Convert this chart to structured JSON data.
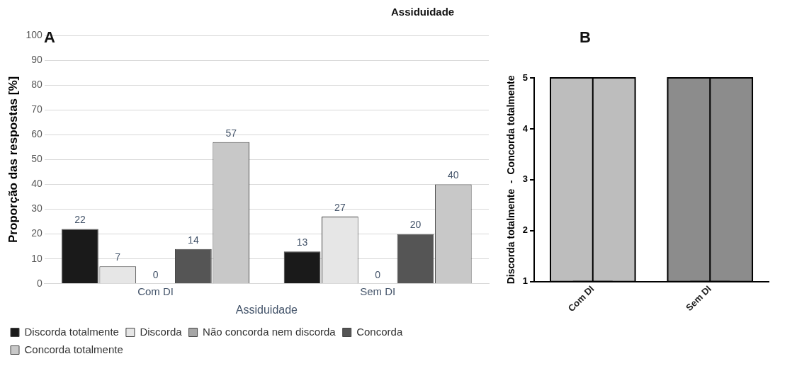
{
  "chart_data": [
    {
      "type": "bar",
      "title": "Assiduidade",
      "ylabel": "Proporção das respostas [%]",
      "xlabel": "Assiduidade",
      "annotations": [
        "A"
      ],
      "categories": [
        "Com DI",
        "Sem DI"
      ],
      "series": [
        {
          "name": "Discorda totalmente",
          "color": "#1a1a1a",
          "values": [
            22,
            13
          ]
        },
        {
          "name": "Discorda",
          "color": "#e6e6e6",
          "values": [
            7,
            27
          ]
        },
        {
          "name": "Não concorda nem discorda",
          "color": "#a6a6a6",
          "values": [
            0,
            0
          ]
        },
        {
          "name": "Concorda",
          "color": "#555555",
          "values": [
            14,
            20
          ]
        },
        {
          "name": "Concorda totalmente",
          "color": "#c8c8c8",
          "values": [
            57,
            40
          ]
        }
      ],
      "ylim": [
        0,
        100
      ],
      "yticks": [
        0,
        10,
        20,
        30,
        40,
        50,
        60,
        70,
        80,
        90,
        100
      ],
      "grid": "y",
      "legend": "bottom",
      "data_labels": true
    },
    {
      "type": "bar",
      "ylabel": "Discorda totalmente  -  Concorda totalmente",
      "annotations": [
        "B"
      ],
      "categories": [
        "Com DI",
        "Sem DI"
      ],
      "values": [
        5,
        5
      ],
      "colors": [
        "#bdbdbd",
        "#8c8c8c"
      ],
      "errors": [
        [
          1,
          5
        ],
        [
          1,
          5
        ]
      ],
      "ylim": [
        1,
        5
      ],
      "yticks": [
        1,
        2,
        3,
        4,
        5
      ],
      "grid": false,
      "legend": false
    }
  ]
}
